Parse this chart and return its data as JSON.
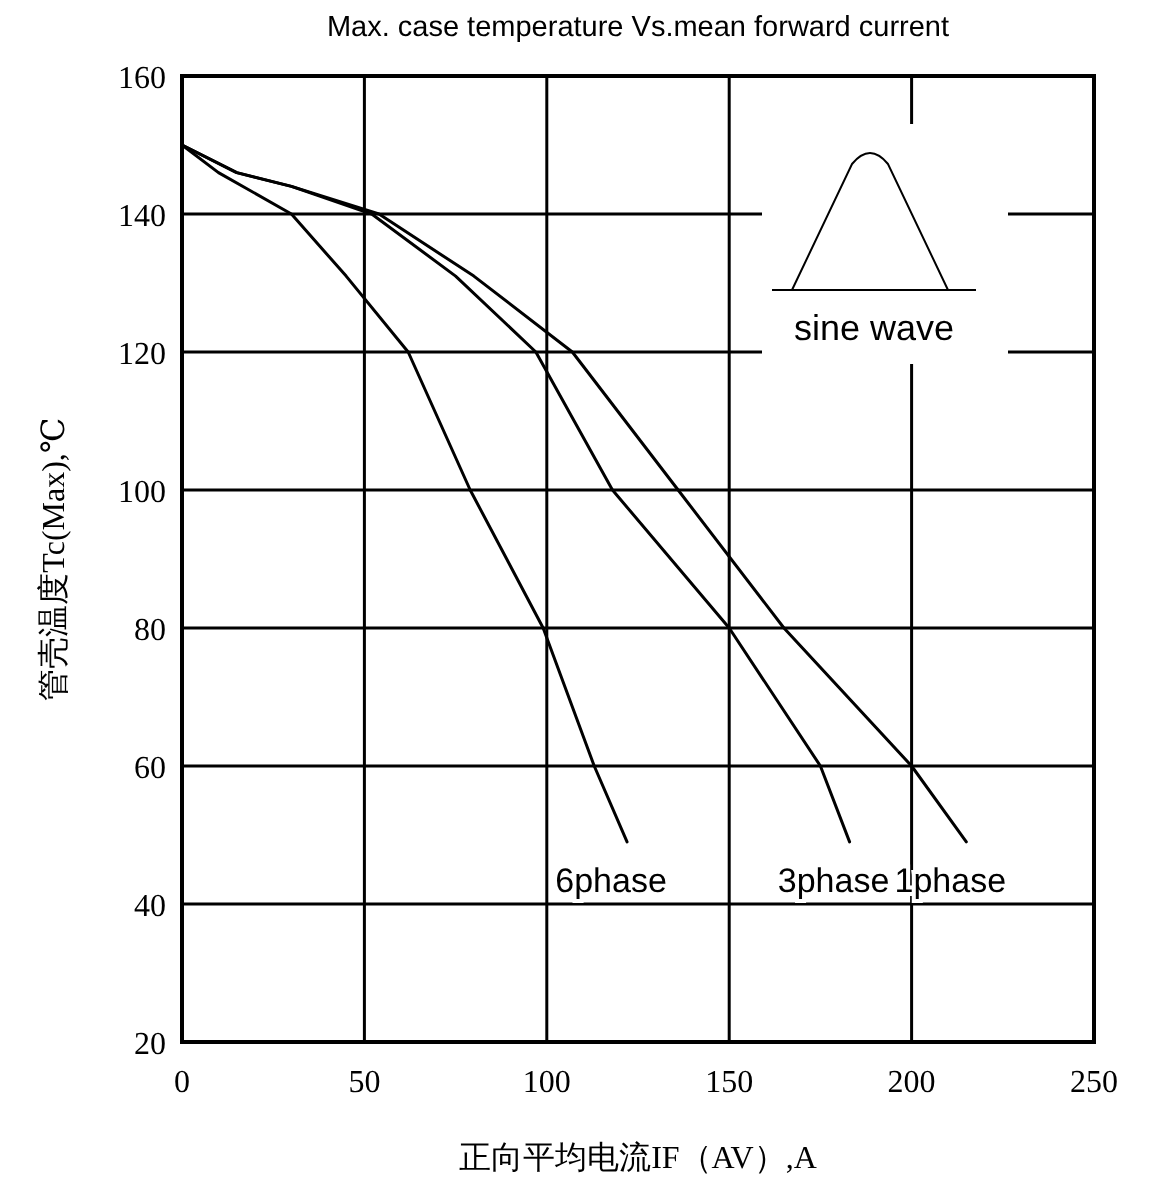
{
  "chart_data": {
    "type": "line",
    "title": "Max. case temperature Vs.mean forward current",
    "xlabel": "正向平均电流IF（AV）,A",
    "ylabel": "管壳温度Tc(Max),℃",
    "xlim": [
      0,
      250
    ],
    "xticks": [
      0,
      50,
      100,
      150,
      200,
      250
    ],
    "ylim": [
      20,
      160
    ],
    "yticks": [
      20,
      40,
      60,
      80,
      100,
      120,
      140,
      160
    ],
    "grid": true,
    "legend": false,
    "annotations": [
      "sine wave"
    ],
    "series": [
      {
        "name": "6phase",
        "color": "#000000",
        "x": [
          0,
          10,
          30,
          45,
          62,
          79,
          99,
          113,
          122
        ],
        "values": [
          150,
          146,
          140,
          131,
          120,
          100,
          80,
          60,
          49
        ]
      },
      {
        "name": "3phase",
        "color": "#000000",
        "x": [
          0,
          15,
          30,
          52,
          75,
          97,
          118,
          150,
          175,
          183
        ],
        "values": [
          150,
          146,
          144,
          140,
          131,
          120,
          100,
          80,
          60,
          49
        ]
      },
      {
        "name": "1phase",
        "color": "#000000",
        "x": [
          0,
          15,
          30,
          54,
          80,
          107,
          136,
          165,
          200,
          215
        ],
        "values": [
          150,
          146,
          144,
          140,
          131,
          120,
          100,
          80,
          60,
          49
        ]
      }
    ]
  }
}
